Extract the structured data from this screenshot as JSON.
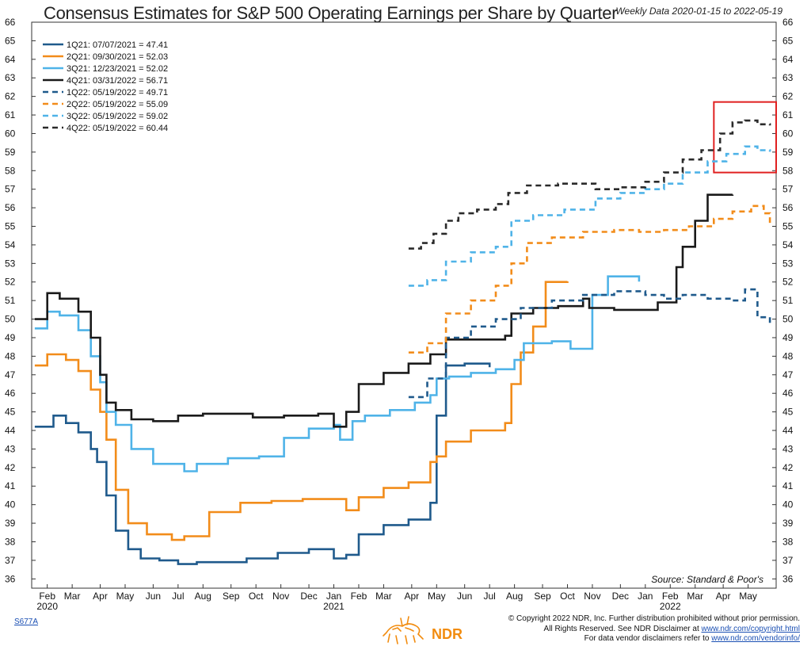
{
  "chart_data": {
    "type": "line",
    "title": "Consensus Estimates for S&P 500 Operating Earnings per Share by Quarter",
    "subtitle": "Weekly Data 2020-01-15 to 2022-05-19",
    "ylim": [
      35.5,
      66
    ],
    "yticks": [
      36,
      37,
      38,
      39,
      40,
      41,
      42,
      43,
      44,
      45,
      46,
      47,
      48,
      49,
      50,
      51,
      52,
      53,
      54,
      55,
      56,
      57,
      58,
      59,
      60,
      61,
      62,
      63,
      64,
      65,
      66
    ],
    "xlim": [
      2020.03,
      2022.42
    ],
    "x_ticks": [
      {
        "label": "Feb",
        "x": 2020.08
      },
      {
        "label": "Mar",
        "x": 2020.16
      },
      {
        "label": "Apr",
        "x": 2020.25
      },
      {
        "label": "May",
        "x": 2020.33
      },
      {
        "label": "Jun",
        "x": 2020.42
      },
      {
        "label": "Jul",
        "x": 2020.5
      },
      {
        "label": "Aug",
        "x": 2020.58
      },
      {
        "label": "Sep",
        "x": 2020.67
      },
      {
        "label": "Oct",
        "x": 2020.75
      },
      {
        "label": "Nov",
        "x": 2020.83
      },
      {
        "label": "Dec",
        "x": 2020.92
      },
      {
        "label": "Jan",
        "x": 2021.0
      },
      {
        "label": "Feb",
        "x": 2021.08
      },
      {
        "label": "Mar",
        "x": 2021.16
      },
      {
        "label": "Apr",
        "x": 2021.25
      },
      {
        "label": "May",
        "x": 2021.33
      },
      {
        "label": "Jun",
        "x": 2021.42
      },
      {
        "label": "Jul",
        "x": 2021.5
      },
      {
        "label": "Aug",
        "x": 2021.58
      },
      {
        "label": "Sep",
        "x": 2021.67
      },
      {
        "label": "Oct",
        "x": 2021.75
      },
      {
        "label": "Nov",
        "x": 2021.83
      },
      {
        "label": "Dec",
        "x": 2021.92
      },
      {
        "label": "Jan",
        "x": 2022.0
      },
      {
        "label": "Feb",
        "x": 2022.08
      },
      {
        "label": "Mar",
        "x": 2022.16
      },
      {
        "label": "Apr",
        "x": 2022.25
      },
      {
        "label": "May",
        "x": 2022.33
      }
    ],
    "year_labels": [
      {
        "label": "2020",
        "x": 2020.08
      },
      {
        "label": "2021",
        "x": 2021.0
      },
      {
        "label": "2022",
        "x": 2022.08
      }
    ],
    "source_note": "Source:   Standard & Poor's",
    "highlight_box": {
      "x": [
        2022.22,
        2022.42
      ],
      "y": [
        57.9,
        61.7
      ]
    },
    "series": [
      {
        "name": "1Q21",
        "label": "1Q21:  07/07/2021 = 47.41",
        "color": "#1f5a8c",
        "dashed": false,
        "x": [
          2020.04,
          2020.1,
          2020.14,
          2020.18,
          2020.22,
          2020.24,
          2020.27,
          2020.3,
          2020.34,
          2020.38,
          2020.44,
          2020.5,
          2020.56,
          2020.62,
          2020.72,
          2020.82,
          2020.92,
          2021.0,
          2021.04,
          2021.08,
          2021.16,
          2021.24,
          2021.31,
          2021.33,
          2021.36,
          2021.42,
          2021.5
        ],
        "values": [
          44.2,
          44.8,
          44.4,
          43.9,
          43.0,
          42.3,
          40.5,
          38.6,
          37.6,
          37.1,
          37.0,
          36.8,
          36.9,
          36.9,
          37.1,
          37.4,
          37.6,
          37.1,
          37.3,
          38.4,
          38.9,
          39.2,
          40.1,
          44.8,
          47.5,
          47.6,
          47.41
        ]
      },
      {
        "name": "2Q21",
        "label": "2Q21:  09/30/2021 = 52.03",
        "color": "#f28c1a",
        "dashed": false,
        "x": [
          2020.04,
          2020.08,
          2020.14,
          2020.18,
          2020.22,
          2020.25,
          2020.27,
          2020.3,
          2020.34,
          2020.4,
          2020.48,
          2020.52,
          2020.6,
          2020.7,
          2020.8,
          2020.9,
          2021.0,
          2021.04,
          2021.08,
          2021.16,
          2021.24,
          2021.31,
          2021.33,
          2021.36,
          2021.44,
          2021.55,
          2021.57,
          2021.6,
          2021.64,
          2021.68,
          2021.75
        ],
        "values": [
          47.5,
          48.1,
          47.8,
          47.2,
          46.2,
          45.0,
          43.5,
          40.8,
          39.0,
          38.4,
          38.1,
          38.3,
          39.6,
          40.1,
          40.2,
          40.3,
          40.3,
          39.7,
          40.4,
          40.9,
          41.2,
          42.3,
          42.6,
          43.4,
          44.0,
          44.4,
          46.5,
          48.2,
          49.6,
          52.0,
          52.03
        ]
      },
      {
        "name": "3Q21",
        "label": "3Q21:  12/23/2021 = 52.02",
        "color": "#4fb3e8",
        "dashed": false,
        "x": [
          2020.04,
          2020.08,
          2020.12,
          2020.18,
          2020.22,
          2020.25,
          2020.27,
          2020.3,
          2020.35,
          2020.42,
          2020.52,
          2020.56,
          2020.66,
          2020.76,
          2020.84,
          2020.92,
          2021.0,
          2021.02,
          2021.06,
          2021.1,
          2021.18,
          2021.26,
          2021.31,
          2021.33,
          2021.37,
          2021.44,
          2021.52,
          2021.58,
          2021.61,
          2021.7,
          2021.76,
          2021.81,
          2021.83,
          2021.88,
          2021.98
        ],
        "values": [
          49.5,
          50.4,
          50.2,
          49.4,
          48.0,
          46.6,
          45.0,
          44.3,
          43.0,
          42.2,
          41.8,
          42.2,
          42.5,
          42.6,
          43.6,
          44.1,
          44.3,
          43.5,
          44.5,
          44.8,
          45.1,
          45.5,
          45.9,
          46.8,
          46.9,
          47.1,
          47.3,
          47.8,
          48.7,
          48.8,
          48.4,
          48.4,
          51.3,
          52.3,
          52.02
        ]
      },
      {
        "name": "4Q21",
        "label": "4Q21:  03/31/2022 = 56.71",
        "color": "#1a1a1a",
        "dashed": false,
        "x": [
          2020.04,
          2020.08,
          2020.12,
          2020.18,
          2020.22,
          2020.25,
          2020.27,
          2020.3,
          2020.35,
          2020.42,
          2020.5,
          2020.58,
          2020.66,
          2020.74,
          2020.84,
          2020.95,
          2021.0,
          2021.04,
          2021.08,
          2021.16,
          2021.24,
          2021.31,
          2021.36,
          2021.44,
          2021.55,
          2021.57,
          2021.64,
          2021.72,
          2021.8,
          2021.82,
          2021.9,
          2021.98,
          2022.04,
          2022.1,
          2022.12,
          2022.16,
          2022.2,
          2022.28
        ],
        "values": [
          50.0,
          51.4,
          51.1,
          50.4,
          49.0,
          47.0,
          45.5,
          45.1,
          44.6,
          44.5,
          44.8,
          44.9,
          44.9,
          44.7,
          44.8,
          44.9,
          44.2,
          45.0,
          46.5,
          47.1,
          47.6,
          48.1,
          48.9,
          48.9,
          49.1,
          50.3,
          50.6,
          50.7,
          51.1,
          50.6,
          50.5,
          50.5,
          50.9,
          52.8,
          53.9,
          55.3,
          56.7,
          56.71
        ]
      },
      {
        "name": "1Q22",
        "label": "1Q22:  05/19/2022 = 49.71",
        "color": "#1f5a8c",
        "dashed": true,
        "x": [
          2021.24,
          2021.3,
          2021.36,
          2021.44,
          2021.52,
          2021.6,
          2021.7,
          2021.8,
          2021.9,
          2022.0,
          2022.06,
          2022.12,
          2022.2,
          2022.28,
          2022.32,
          2022.36,
          2022.4
        ],
        "values": [
          45.8,
          46.8,
          49.0,
          49.6,
          50.0,
          50.6,
          51.0,
          51.3,
          51.5,
          51.3,
          51.1,
          51.3,
          51.1,
          51.0,
          51.6,
          50.1,
          49.71
        ]
      },
      {
        "name": "2Q22",
        "label": "2Q22:  05/19/2022 = 55.09",
        "color": "#f28c1a",
        "dashed": true,
        "x": [
          2021.24,
          2021.3,
          2021.36,
          2021.44,
          2021.52,
          2021.57,
          2021.62,
          2021.7,
          2021.8,
          2021.9,
          2021.98,
          2022.06,
          2022.14,
          2022.22,
          2022.28,
          2022.34,
          2022.38,
          2022.4
        ],
        "values": [
          48.2,
          48.7,
          50.3,
          51.0,
          51.8,
          53.0,
          54.1,
          54.4,
          54.7,
          54.8,
          54.7,
          54.8,
          55.0,
          55.4,
          55.8,
          56.1,
          55.7,
          55.09
        ]
      },
      {
        "name": "3Q22",
        "label": "3Q22:  05/19/2022 = 59.02",
        "color": "#4fb3e8",
        "dashed": true,
        "x": [
          2021.24,
          2021.3,
          2021.36,
          2021.44,
          2021.52,
          2021.57,
          2021.64,
          2021.74,
          2021.84,
          2021.92,
          2022.0,
          2022.06,
          2022.12,
          2022.2,
          2022.26,
          2022.32,
          2022.36,
          2022.4
        ],
        "values": [
          51.8,
          52.1,
          53.1,
          53.6,
          53.9,
          55.3,
          55.6,
          55.9,
          56.5,
          56.8,
          57.0,
          57.3,
          57.9,
          58.5,
          58.9,
          59.3,
          59.1,
          59.02
        ]
      },
      {
        "name": "4Q22",
        "label": "4Q22:  05/19/2022 = 60.44",
        "color": "#2a2a2a",
        "dashed": true,
        "x": [
          2021.24,
          2021.28,
          2021.32,
          2021.36,
          2021.4,
          2021.46,
          2021.52,
          2021.56,
          2021.62,
          2021.72,
          2021.76,
          2021.84,
          2021.92,
          2022.0,
          2022.06,
          2022.12,
          2022.18,
          2022.24,
          2022.28,
          2022.32,
          2022.36,
          2022.4
        ],
        "values": [
          53.8,
          54.1,
          54.6,
          55.3,
          55.7,
          55.9,
          56.2,
          56.8,
          57.2,
          57.3,
          57.3,
          57.0,
          57.1,
          57.4,
          57.9,
          58.6,
          59.1,
          60.0,
          60.6,
          60.7,
          60.5,
          60.44
        ]
      }
    ]
  },
  "footer": {
    "code": "S677A",
    "copyright": "© Copyright 2022 NDR, Inc. Further distribution prohibited without prior permission.",
    "rights": "All Rights Reserved. See NDR Disclaimer at",
    "rights_link": "www.ndr.com/copyright.html",
    "vendor": "For data vendor disclaimers refer to",
    "vendor_link": "www.ndr.com/vendorinfo/",
    "logo_text": "NDR"
  }
}
